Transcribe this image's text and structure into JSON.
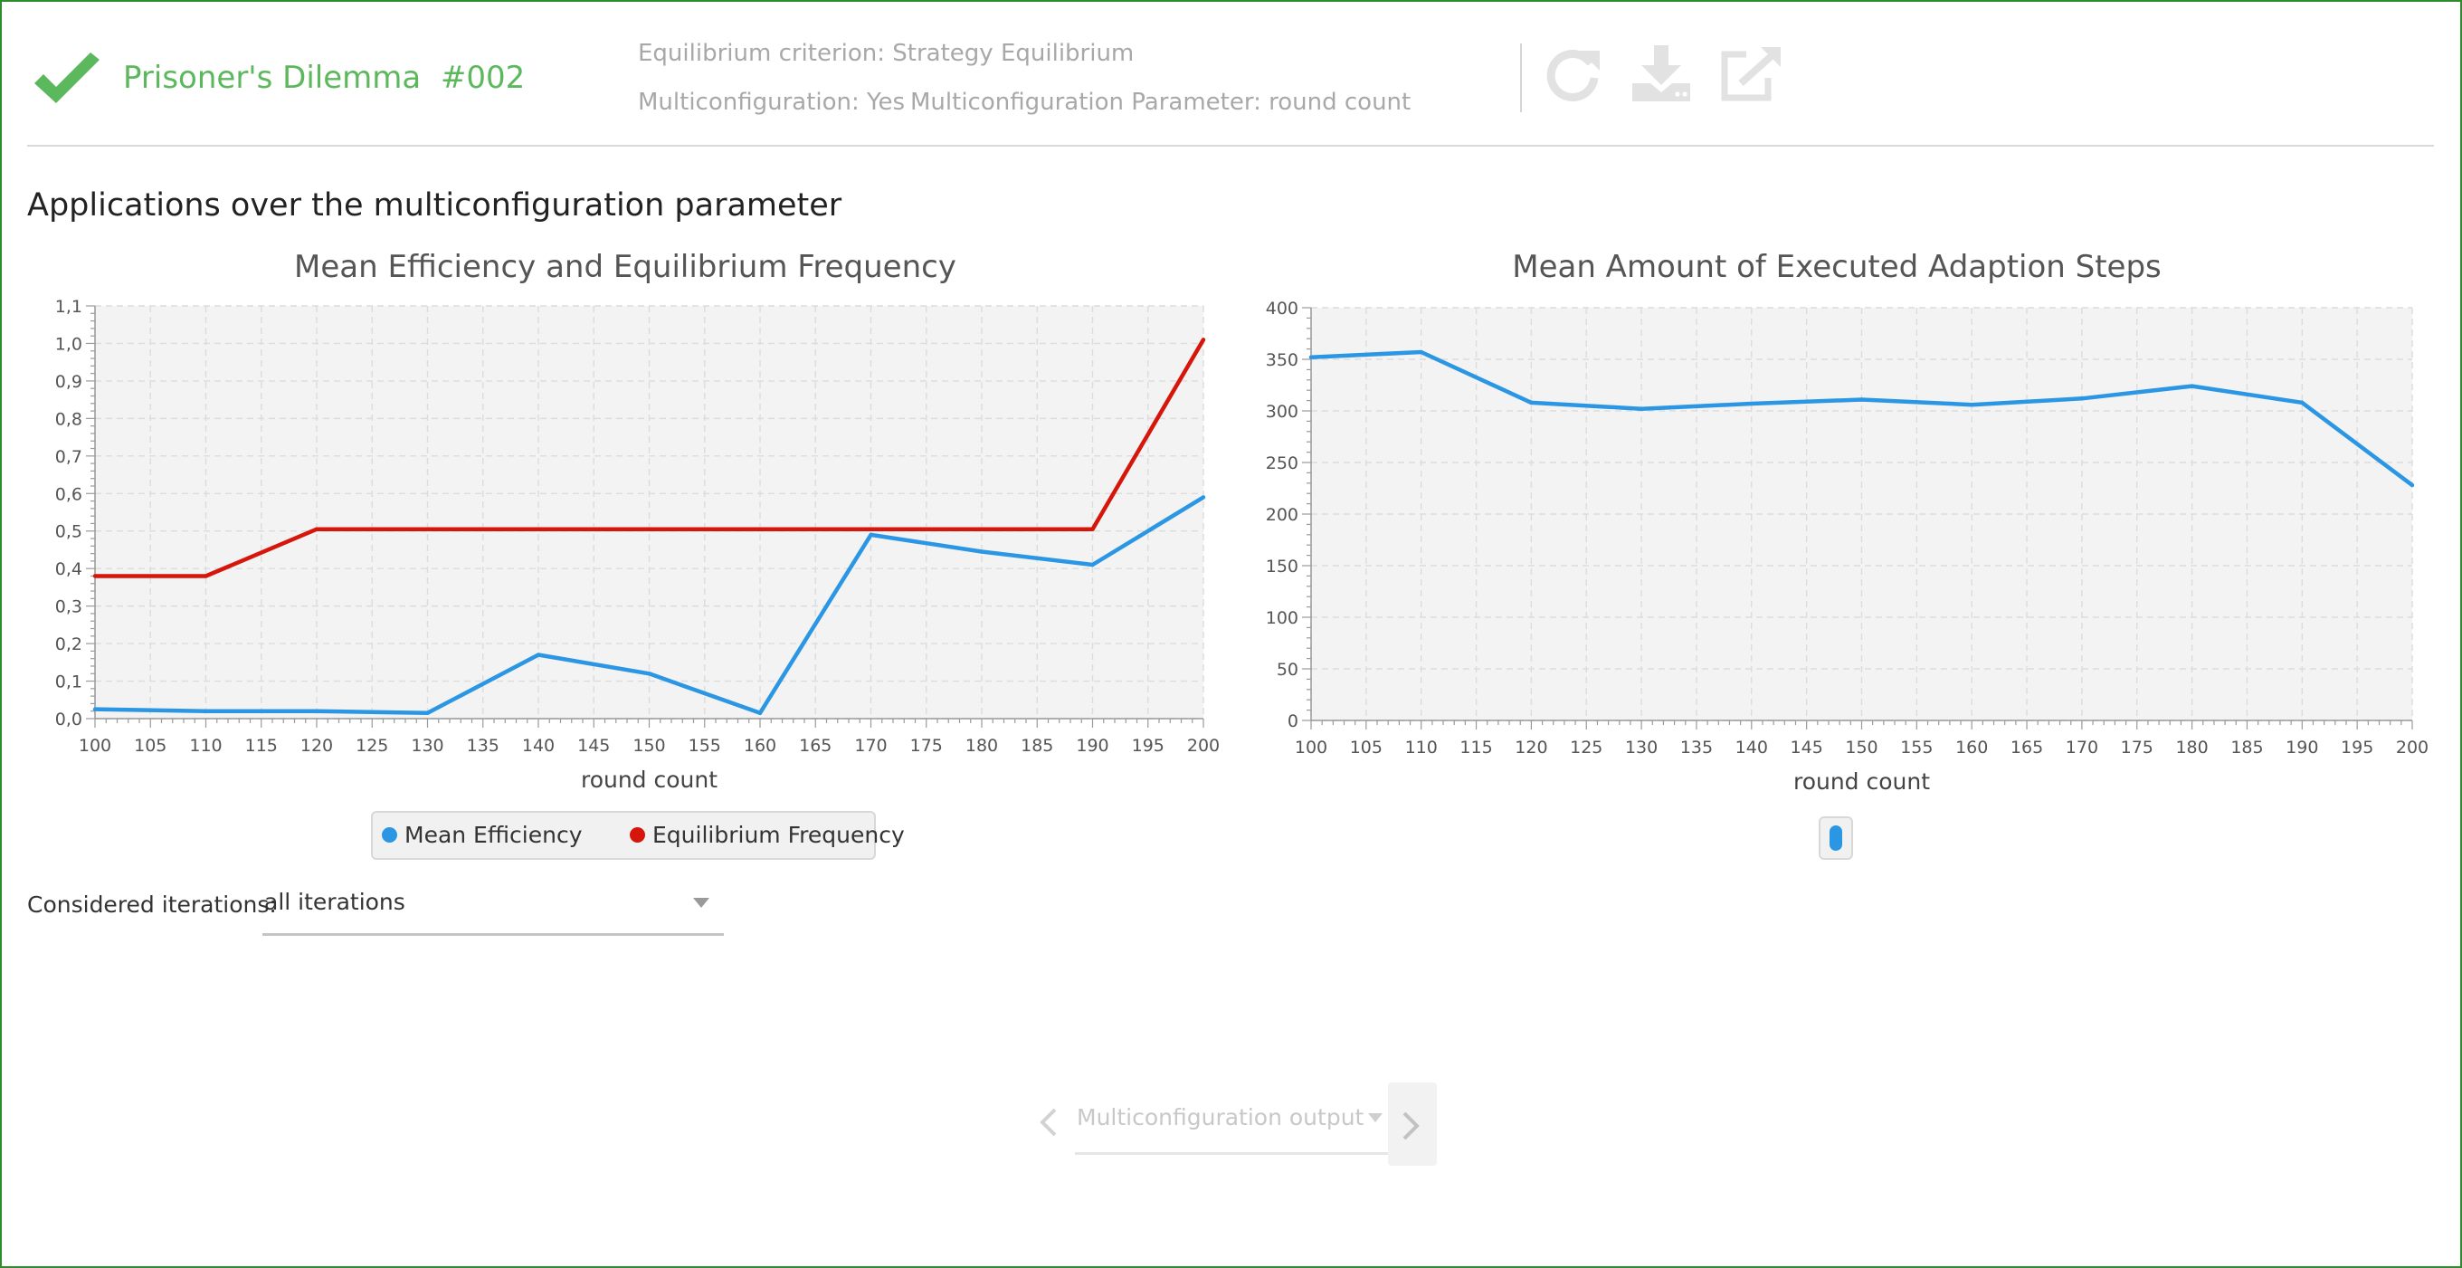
{
  "header": {
    "title": "Prisoner's Dilemma",
    "run_id": "#002",
    "equilibrium_criterion": "Equilibrium criterion: Strategy Equilibrium",
    "multiconfiguration": "Multiconfiguration: Yes",
    "multiconfiguration_parameter": "Multiconfiguration Parameter: round count",
    "icons": [
      "checkmark-icon",
      "refresh-icon",
      "download-icon",
      "export-icon"
    ],
    "status_color": "#5cb85c"
  },
  "section_title": "Applications over the multiconfiguration parameter",
  "iterations": {
    "label": "Considered iterations:",
    "selected": "all iterations"
  },
  "bottom_nav": {
    "selected": "Multiconfiguration output"
  },
  "chart_data": [
    {
      "type": "line",
      "title": "Mean Efficiency and Equilibrium Frequency",
      "xlabel": "round count",
      "ylabel": "",
      "xlim": [
        100,
        200
      ],
      "ylim": [
        0,
        1.1
      ],
      "x_ticks": [
        "100",
        "105",
        "110",
        "115",
        "120",
        "125",
        "130",
        "135",
        "140",
        "145",
        "150",
        "155",
        "160",
        "165",
        "170",
        "175",
        "180",
        "185",
        "190",
        "195",
        "200"
      ],
      "y_ticks": [
        "0,0",
        "0,1",
        "0,2",
        "0,3",
        "0,4",
        "0,5",
        "0,6",
        "0,7",
        "0,8",
        "0,9",
        "1,0",
        "1,1"
      ],
      "grid": true,
      "legend": "bottom",
      "x": [
        100,
        110,
        120,
        130,
        140,
        150,
        160,
        170,
        180,
        190,
        200
      ],
      "series": [
        {
          "name": "Mean Efficiency",
          "color": "#2b96e4",
          "values": [
            0.025,
            0.02,
            0.02,
            0.015,
            0.17,
            0.12,
            0.015,
            0.49,
            0.445,
            0.41,
            0.59
          ]
        },
        {
          "name": "Equilibrium Frequency",
          "color": "#d6160b",
          "values": [
            0.38,
            0.38,
            0.505,
            0.505,
            0.505,
            0.505,
            0.505,
            0.505,
            0.505,
            0.505,
            1.01
          ]
        }
      ]
    },
    {
      "type": "line",
      "title": "Mean Amount of Executed Adaption Steps",
      "xlabel": "round count",
      "ylabel": "",
      "xlim": [
        100,
        200
      ],
      "ylim": [
        0,
        400
      ],
      "x_ticks": [
        "100",
        "105",
        "110",
        "115",
        "120",
        "125",
        "130",
        "135",
        "140",
        "145",
        "150",
        "155",
        "160",
        "165",
        "170",
        "175",
        "180",
        "185",
        "190",
        "195",
        "200"
      ],
      "y_ticks": [
        "0",
        "50",
        "100",
        "150",
        "200",
        "250",
        "300",
        "350",
        "400"
      ],
      "grid": true,
      "legend": "bottom",
      "x": [
        100,
        110,
        120,
        130,
        140,
        150,
        160,
        170,
        180,
        190,
        200
      ],
      "series": [
        {
          "color": "#2b96e4",
          "values": [
            352,
            357,
            308,
            302,
            307,
            311,
            306,
            312,
            324,
            308,
            228
          ]
        }
      ]
    }
  ]
}
